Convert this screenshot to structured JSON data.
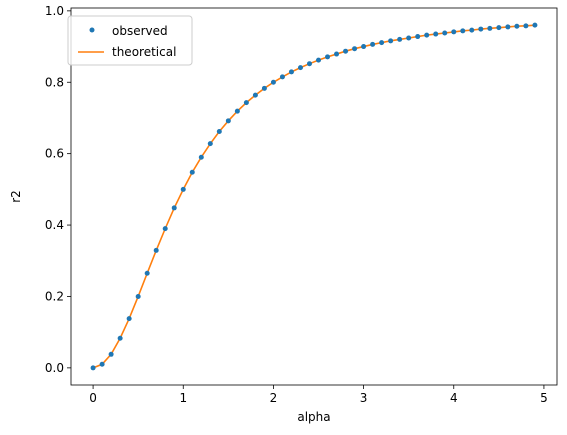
{
  "chart_data": {
    "type": "line",
    "xlabel": "alpha",
    "ylabel": "r2",
    "xlim": [
      -0.245,
      5.145
    ],
    "ylim": [
      -0.048,
      1.008
    ],
    "xticks": [
      0,
      1,
      2,
      3,
      4,
      5
    ],
    "yticks": [
      0.0,
      0.2,
      0.4,
      0.6,
      0.8,
      1.0
    ],
    "xtick_labels": [
      "0",
      "1",
      "2",
      "3",
      "4",
      "5"
    ],
    "ytick_labels": [
      "0.0",
      "0.2",
      "0.4",
      "0.6",
      "0.8",
      "1.0"
    ],
    "grid": false,
    "legend_position": "top-left",
    "x": [
      0.0,
      0.1,
      0.2,
      0.3,
      0.4,
      0.5,
      0.6,
      0.7,
      0.8,
      0.9,
      1.0,
      1.1,
      1.2,
      1.3,
      1.4,
      1.5,
      1.6,
      1.7,
      1.8,
      1.9,
      2.0,
      2.1,
      2.2,
      2.3,
      2.4,
      2.5,
      2.6,
      2.7,
      2.8,
      2.9,
      3.0,
      3.1,
      3.2,
      3.3,
      3.4,
      3.5,
      3.6,
      3.7,
      3.8,
      3.9,
      4.0,
      4.1,
      4.2,
      4.3,
      4.4,
      4.5,
      4.6,
      4.7,
      4.8,
      4.9
    ],
    "series": [
      {
        "name": "observed",
        "kind": "scatter",
        "color": "#1f77b4",
        "values": [
          0.0,
          0.01,
          0.038,
          0.083,
          0.138,
          0.2,
          0.265,
          0.329,
          0.39,
          0.448,
          0.5,
          0.548,
          0.59,
          0.628,
          0.662,
          0.692,
          0.719,
          0.743,
          0.764,
          0.783,
          0.8,
          0.815,
          0.829,
          0.841,
          0.852,
          0.862,
          0.871,
          0.879,
          0.887,
          0.894,
          0.9,
          0.906,
          0.911,
          0.916,
          0.92,
          0.924,
          0.928,
          0.932,
          0.935,
          0.938,
          0.941,
          0.944,
          0.946,
          0.949,
          0.951,
          0.953,
          0.955,
          0.957,
          0.958,
          0.96
        ]
      },
      {
        "name": "theoretical",
        "kind": "line",
        "color": "#ff7f0e",
        "values": [
          0.0,
          0.01,
          0.038,
          0.083,
          0.138,
          0.2,
          0.265,
          0.329,
          0.39,
          0.448,
          0.5,
          0.548,
          0.59,
          0.628,
          0.662,
          0.692,
          0.719,
          0.743,
          0.764,
          0.783,
          0.8,
          0.815,
          0.829,
          0.841,
          0.852,
          0.862,
          0.871,
          0.879,
          0.887,
          0.894,
          0.9,
          0.906,
          0.911,
          0.916,
          0.92,
          0.924,
          0.928,
          0.932,
          0.935,
          0.938,
          0.941,
          0.944,
          0.946,
          0.949,
          0.951,
          0.953,
          0.955,
          0.957,
          0.958,
          0.96
        ]
      }
    ]
  }
}
